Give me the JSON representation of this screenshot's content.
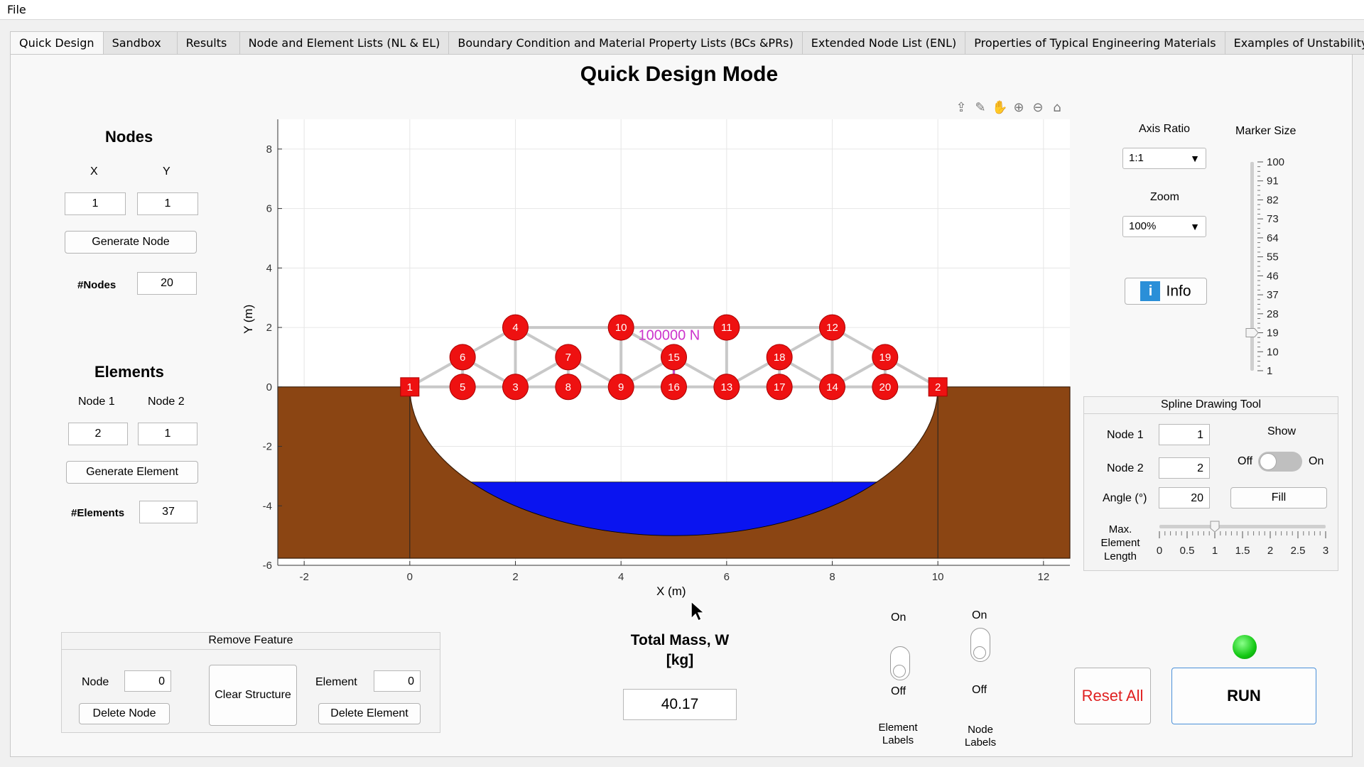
{
  "menu": {
    "file": "File"
  },
  "tabs": [
    {
      "label": "Quick Design"
    },
    {
      "label": "Sandbox"
    },
    {
      "label": "Results"
    },
    {
      "label": "Node and Element Lists (NL & EL)"
    },
    {
      "label": "Boundary Condition and Material Property Lists (BCs &PRs)"
    },
    {
      "label": "Extended Node List (ENL)"
    },
    {
      "label": "Properties of Typical Engineering Materials"
    },
    {
      "label": "Examples of Unstability"
    }
  ],
  "page_title": "Quick Design Mode",
  "nodes_panel": {
    "heading": "Nodes",
    "x_label": "X",
    "y_label": "Y",
    "x_value": "1",
    "y_value": "1",
    "generate_button": "Generate Node",
    "count_label": "#Nodes",
    "count_value": "20"
  },
  "elements_panel": {
    "heading": "Elements",
    "node1_label": "Node 1",
    "node2_label": "Node 2",
    "node1_value": "2",
    "node2_value": "1",
    "generate_button": "Generate Element",
    "count_label": "#Elements",
    "count_value": "37"
  },
  "plot": {
    "xlabel": "X (m)",
    "ylabel": "Y (m)",
    "xlim": [
      -2.5,
      12.5
    ],
    "ylim": [
      -6,
      9
    ],
    "xticks": [
      "-2",
      "0",
      "2",
      "4",
      "6",
      "8",
      "10",
      "12"
    ],
    "yticks": [
      "-6",
      "-4",
      "-2",
      "0",
      "2",
      "4",
      "6",
      "8"
    ],
    "load_label": "100000  N",
    "nodes": [
      {
        "id": "1",
        "x": 0,
        "y": 0,
        "support": true
      },
      {
        "id": "2",
        "x": 10,
        "y": 0,
        "support": true
      },
      {
        "id": "3",
        "x": 2,
        "y": 0
      },
      {
        "id": "4",
        "x": 2,
        "y": 2
      },
      {
        "id": "5",
        "x": 1,
        "y": 0
      },
      {
        "id": "6",
        "x": 1,
        "y": 1
      },
      {
        "id": "7",
        "x": 3,
        "y": 1
      },
      {
        "id": "8",
        "x": 3,
        "y": 0
      },
      {
        "id": "9",
        "x": 4,
        "y": 0
      },
      {
        "id": "10",
        "x": 4,
        "y": 2
      },
      {
        "id": "11",
        "x": 6,
        "y": 2
      },
      {
        "id": "12",
        "x": 8,
        "y": 2
      },
      {
        "id": "13",
        "x": 6,
        "y": 0
      },
      {
        "id": "14",
        "x": 8,
        "y": 0
      },
      {
        "id": "15",
        "x": 5,
        "y": 1
      },
      {
        "id": "16",
        "x": 5,
        "y": 0
      },
      {
        "id": "17",
        "x": 7,
        "y": 0
      },
      {
        "id": "18",
        "x": 7,
        "y": 1
      },
      {
        "id": "19",
        "x": 9,
        "y": 1
      },
      {
        "id": "20",
        "x": 9,
        "y": 0
      }
    ],
    "elements": [
      [
        "1",
        "5"
      ],
      [
        "5",
        "3"
      ],
      [
        "3",
        "8"
      ],
      [
        "8",
        "9"
      ],
      [
        "9",
        "16"
      ],
      [
        "16",
        "13"
      ],
      [
        "13",
        "17"
      ],
      [
        "17",
        "14"
      ],
      [
        "14",
        "20"
      ],
      [
        "20",
        "2"
      ],
      [
        "1",
        "6"
      ],
      [
        "6",
        "4"
      ],
      [
        "4",
        "7"
      ],
      [
        "7",
        "9"
      ],
      [
        "4",
        "10"
      ],
      [
        "10",
        "11"
      ],
      [
        "11",
        "12"
      ],
      [
        "12",
        "18"
      ],
      [
        "18",
        "13"
      ],
      [
        "12",
        "19"
      ],
      [
        "19",
        "2"
      ],
      [
        "6",
        "5"
      ],
      [
        "6",
        "3"
      ],
      [
        "4",
        "3"
      ],
      [
        "7",
        "3"
      ],
      [
        "7",
        "8"
      ],
      [
        "10",
        "9"
      ],
      [
        "10",
        "15"
      ],
      [
        "15",
        "16"
      ],
      [
        "15",
        "13"
      ],
      [
        "11",
        "13"
      ],
      [
        "18",
        "17"
      ],
      [
        "18",
        "14"
      ],
      [
        "12",
        "14"
      ],
      [
        "19",
        "14"
      ],
      [
        "19",
        "20"
      ],
      [
        "9",
        "15"
      ]
    ],
    "colors": {
      "ground": "#8b4513",
      "water": "#0a14f0",
      "node": "#ee1111",
      "member": "#c8c8c8",
      "load": "#cc33cc"
    }
  },
  "toolbar_icons": [
    "export-icon",
    "brush-icon",
    "pan-icon",
    "zoom-in-icon",
    "zoom-out-icon",
    "home-icon"
  ],
  "axis_ratio": {
    "label": "Axis Ratio",
    "value": "1:1"
  },
  "zoom": {
    "label": "Zoom",
    "value": "100%"
  },
  "info_button": "Info",
  "marker_size": {
    "label": "Marker Size",
    "ticks": [
      "100",
      "91",
      "82",
      "73",
      "64",
      "55",
      "46",
      "37",
      "28",
      "19",
      "10",
      "1"
    ],
    "value": 19
  },
  "spline_tool": {
    "title": "Spline Drawing Tool",
    "node1_label": "Node 1",
    "node1_value": "1",
    "node2_label": "Node 2",
    "node2_value": "2",
    "angle_label": "Angle (°)",
    "angle_value": "20",
    "show_label": "Show",
    "off_label": "Off",
    "on_label": "On",
    "fill_button": "Fill",
    "max_len_label": "Max. Element Length",
    "max_len_ticks": [
      "0",
      "0.5",
      "1",
      "1.5",
      "2",
      "2.5",
      "3"
    ],
    "max_len_value": 1
  },
  "remove_feature": {
    "title": "Remove Feature",
    "node_label": "Node",
    "node_value": "0",
    "element_label": "Element",
    "element_value": "0",
    "clear_button": "Clear Structure",
    "delete_node_button": "Delete Node",
    "delete_element_button": "Delete Element"
  },
  "mass": {
    "label_line1": "Total Mass, W",
    "label_line2": "[kg]",
    "value": "40.17"
  },
  "element_labels_toggle": {
    "on": "On",
    "off": "Off",
    "caption": "Element Labels"
  },
  "node_labels_toggle": {
    "on": "On",
    "off": "Off",
    "caption": "Node Labels"
  },
  "reset_button": "Reset All",
  "run_button": "RUN"
}
